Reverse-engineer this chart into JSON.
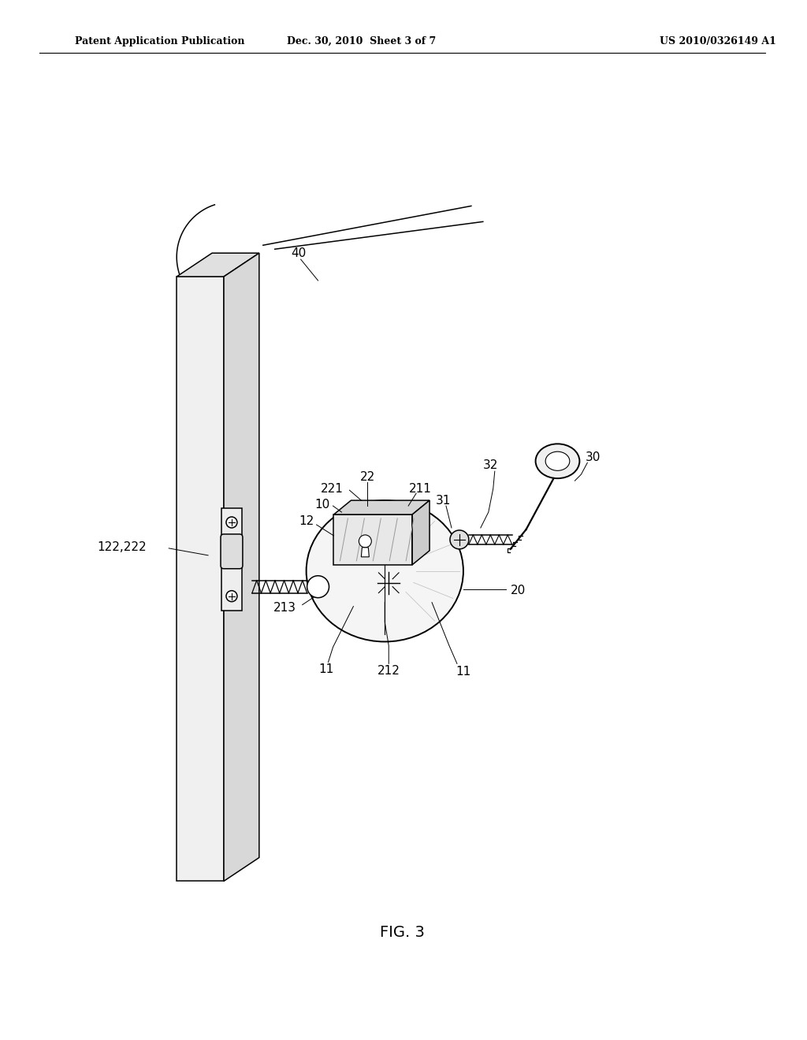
{
  "background_color": "#ffffff",
  "header_left": "Patent Application Publication",
  "header_center": "Dec. 30, 2010  Sheet 3 of 7",
  "header_right": "US 2010/0326149 A1",
  "figure_label": "FIG. 3"
}
